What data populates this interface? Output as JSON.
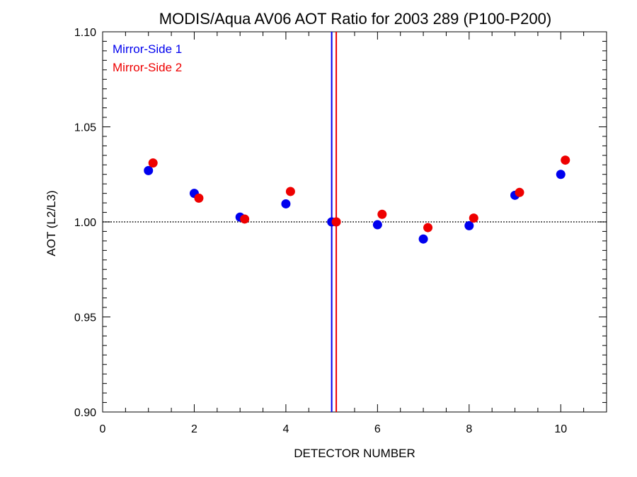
{
  "chart_data": {
    "type": "scatter",
    "title": "MODIS/Aqua AV06 AOT Ratio for 2003 289 (P100-P200)",
    "xlabel": "DETECTOR NUMBER",
    "ylabel": "AOT (L2/L3)",
    "xlim": [
      0,
      11
    ],
    "ylim": [
      0.9,
      1.1
    ],
    "x_ticks": [
      0,
      2,
      4,
      6,
      8,
      10
    ],
    "x_tick_labels": [
      "0",
      "2",
      "4",
      "6",
      "8",
      "10"
    ],
    "y_ticks": [
      0.9,
      0.95,
      1.0,
      1.05,
      1.1
    ],
    "y_tick_labels": [
      "0.90",
      "0.95",
      "1.00",
      "1.05",
      "1.10"
    ],
    "legend_position": "top-left",
    "reference_line": {
      "y": 1.0,
      "style": "dotted"
    },
    "vertical_lines": [
      {
        "x": 5.0,
        "color": "#0000ee"
      },
      {
        "x": 5.1,
        "color": "#ee0000"
      }
    ],
    "series": [
      {
        "name": "Mirror-Side 1",
        "color": "#0000ee",
        "x": [
          1,
          2,
          3,
          4,
          5,
          6,
          7,
          8,
          9,
          10
        ],
        "y": [
          1.027,
          1.015,
          1.0025,
          1.0095,
          1.0,
          0.9985,
          0.991,
          0.998,
          1.014,
          1.025
        ]
      },
      {
        "name": "Mirror-Side 2",
        "color": "#ee0000",
        "x": [
          1.1,
          2.1,
          3.1,
          4.1,
          5.1,
          6.1,
          7.1,
          8.1,
          9.1,
          10.1
        ],
        "y": [
          1.031,
          1.0125,
          1.0015,
          1.016,
          1.0,
          1.004,
          0.997,
          1.002,
          1.0155,
          1.0325
        ]
      }
    ]
  }
}
